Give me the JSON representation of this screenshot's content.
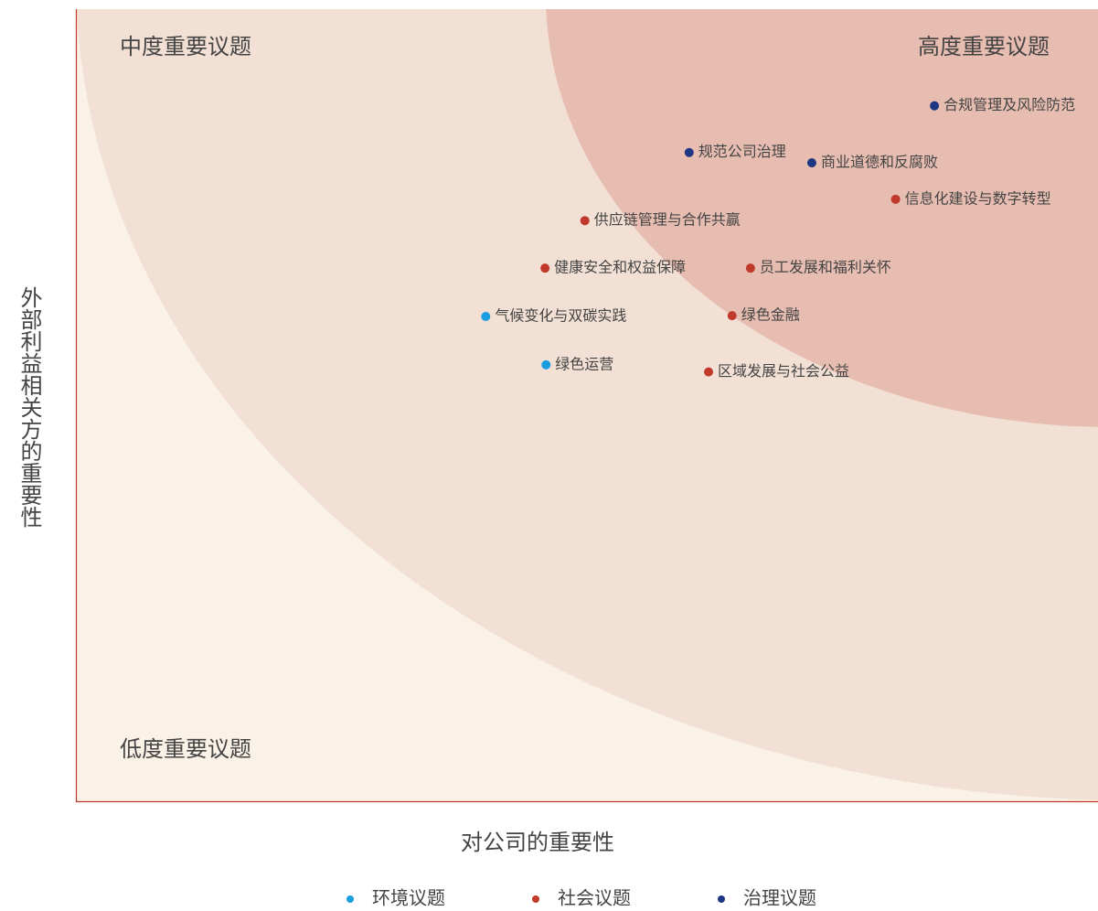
{
  "chart_data": {
    "type": "scatter",
    "xlabel": "对公司的重要性",
    "ylabel": "外部利益相关方的重要性",
    "xlim": [
      0,
      100
    ],
    "ylim": [
      0,
      100
    ],
    "zones": [
      "中度重要议题",
      "高度重要议题",
      "低度重要议题"
    ],
    "series": [
      {
        "name": "环境议题",
        "color": "#1a9ee0",
        "labels": [
          "气候变化与双碳实践",
          "绿色运营"
        ],
        "x": [
          40.1,
          46.0
        ],
        "y": [
          61.2,
          55.1
        ]
      },
      {
        "name": "社会议题",
        "color": "#c0392b",
        "labels": [
          "信息化建设与数字转型",
          "供应链管理与合作共赢",
          "健康安全和权益保障",
          "员工发展和福利关怀",
          "绿色金融",
          "区域发展与社会公益"
        ],
        "x": [
          80.2,
          49.8,
          45.9,
          66.0,
          64.2,
          61.9
        ],
        "y": [
          76.0,
          73.3,
          67.3,
          67.3,
          61.3,
          54.2
        ]
      },
      {
        "name": "治理议题",
        "color": "#1f3783",
        "labels": [
          "合规管理及风险防范",
          "规范公司治理",
          "商业道德和反腐败"
        ],
        "x": [
          84.0,
          60.0,
          72.0
        ],
        "y": [
          87.8,
          81.9,
          80.6
        ]
      }
    ]
  }
}
